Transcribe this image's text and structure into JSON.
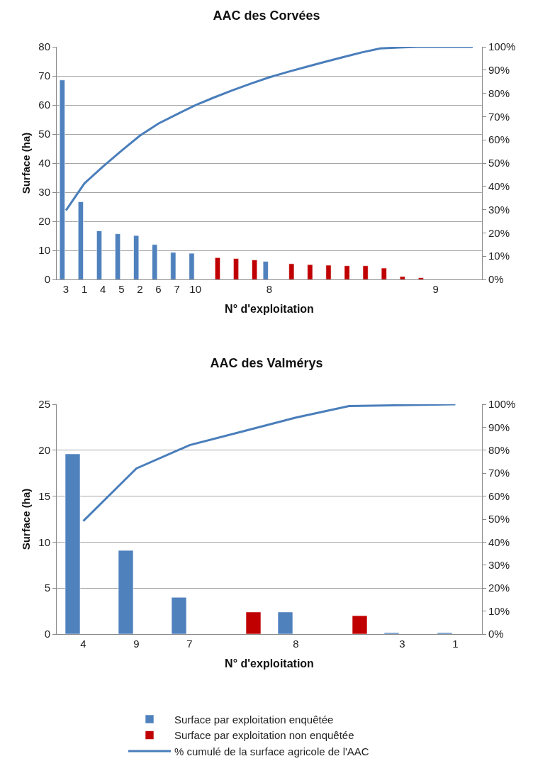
{
  "chart_data": [
    {
      "type": "bar",
      "title": "AAC des Corvées",
      "xlabel": "N° d'exploitation",
      "ylabel": "Surface (ha)",
      "categories": [
        "3",
        "1",
        "4",
        "5",
        "2",
        "6",
        "7",
        "10",
        null,
        null,
        null,
        "8",
        null,
        null,
        null,
        null,
        null,
        null,
        null,
        null,
        "9",
        null,
        null
      ],
      "ylim": [
        0,
        80
      ],
      "yticks": [
        0,
        10,
        20,
        30,
        40,
        50,
        60,
        70,
        80
      ],
      "y2lim": [
        0,
        100
      ],
      "y2ticks": [
        {
          "value": 0,
          "label": "0%"
        },
        {
          "value": 10,
          "label": "10%"
        },
        {
          "value": 20,
          "label": "20%"
        },
        {
          "value": 30,
          "label": "30%"
        },
        {
          "value": 40,
          "label": "40%"
        },
        {
          "value": 50,
          "label": "50%"
        },
        {
          "value": 60,
          "label": "60%"
        },
        {
          "value": 70,
          "label": "70%"
        },
        {
          "value": 80,
          "label": "80%"
        },
        {
          "value": 90,
          "label": "90%"
        },
        {
          "value": 100,
          "label": "100%"
        }
      ],
      "grid": "y",
      "legend": false,
      "series": [
        {
          "color": "#4f81bd",
          "values": [
            68.6,
            26.7,
            16.7,
            15.7,
            15.1,
            12.0,
            9.3,
            9.0,
            null,
            null,
            null,
            6.2,
            null,
            null,
            null,
            null,
            null,
            null,
            null,
            null,
            null,
            null,
            null
          ]
        },
        {
          "color": "#c00000",
          "values": [
            null,
            null,
            null,
            null,
            null,
            null,
            null,
            null,
            7.5,
            7.2,
            6.7,
            null,
            5.4,
            5.1,
            4.9,
            4.7,
            4.7,
            3.9,
            1.0,
            0.6,
            null,
            null,
            null
          ]
        },
        {
          "type": "line",
          "axis": "y2",
          "color": "#4a7ebb",
          "values": [
            29.7,
            41.3,
            48.5,
            55.3,
            61.8,
            67.0,
            71.0,
            74.9,
            78.2,
            81.3,
            84.2,
            86.9,
            89.2,
            91.4,
            93.5,
            95.6,
            97.6,
            99.3,
            99.7,
            100,
            100,
            100,
            100
          ]
        }
      ]
    },
    {
      "type": "bar",
      "title": "AAC des Valmérys",
      "xlabel": "N° d'exploitation",
      "ylabel": "Surface (ha)",
      "categories": [
        "4",
        "9",
        "7",
        null,
        "8",
        null,
        "3",
        "1"
      ],
      "ylim": [
        0,
        25
      ],
      "yticks": [
        0,
        5,
        10,
        15,
        20,
        25
      ],
      "y2lim": [
        0,
        100
      ],
      "y2ticks": [
        {
          "value": 0,
          "label": "0%"
        },
        {
          "value": 10,
          "label": "10%"
        },
        {
          "value": 20,
          "label": "20%"
        },
        {
          "value": 30,
          "label": "30%"
        },
        {
          "value": 40,
          "label": "40%"
        },
        {
          "value": 50,
          "label": "50%"
        },
        {
          "value": 60,
          "label": "60%"
        },
        {
          "value": 70,
          "label": "70%"
        },
        {
          "value": 80,
          "label": "80%"
        },
        {
          "value": 90,
          "label": "90%"
        },
        {
          "value": 100,
          "label": "100%"
        }
      ],
      "grid": "y",
      "legend": "bottom",
      "series": [
        {
          "name": "Surface par exploitation enquêtée",
          "color": "#4f81bd",
          "values": [
            19.6,
            9.1,
            4.0,
            null,
            2.4,
            null,
            0.15,
            0.15
          ]
        },
        {
          "name": "Surface par exploitation non enquêtée",
          "color": "#c00000",
          "values": [
            null,
            null,
            null,
            2.4,
            null,
            2.0,
            null,
            null
          ]
        },
        {
          "name": "% cumulé de la surface agricole de l'AAC",
          "type": "line",
          "axis": "y2",
          "color": "#4a7ebb",
          "values": [
            49.2,
            72.1,
            82.2,
            88.2,
            94.2,
            99.2,
            99.6,
            100
          ]
        }
      ]
    }
  ]
}
